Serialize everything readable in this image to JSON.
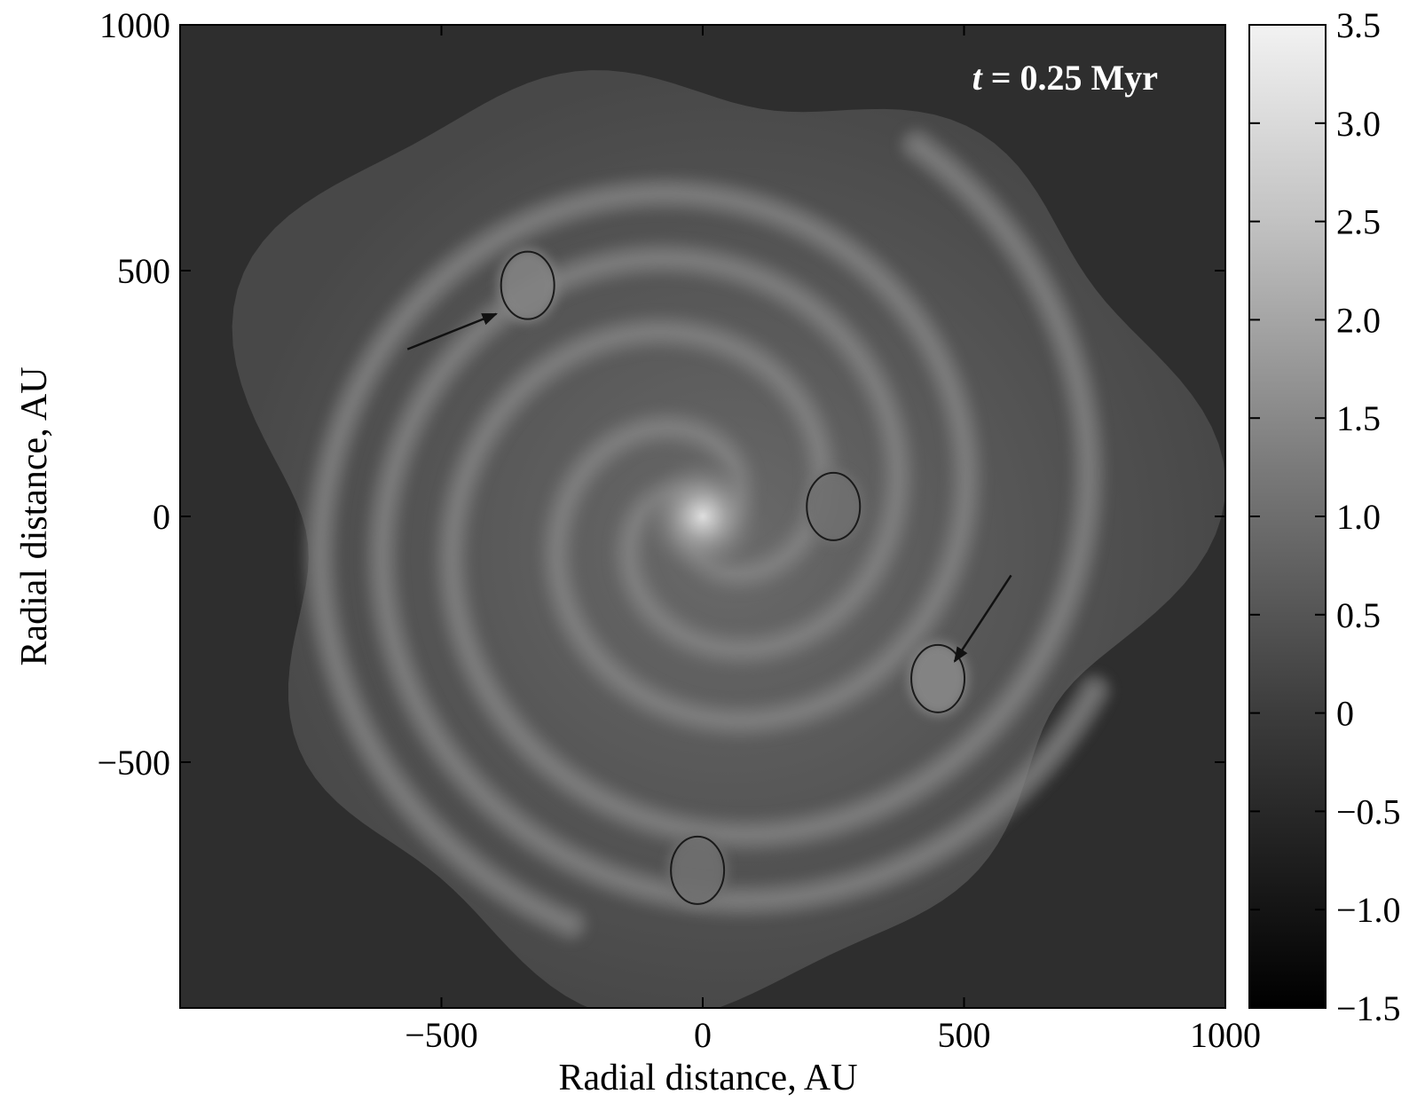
{
  "chart_data": {
    "type": "heatmap",
    "xlabel": "Radial distance, AU",
    "ylabel": "Radial distance, AU",
    "xlim": [
      -1000,
      1000
    ],
    "ylim": [
      -1000,
      1000
    ],
    "x_ticks": [
      -500,
      0,
      500,
      1000
    ],
    "x_tick_labels": [
      "−500",
      "0",
      "500",
      "1000"
    ],
    "y_ticks": [
      1000,
      500,
      0,
      -500
    ],
    "y_tick_labels": [
      "1000",
      "500",
      "0",
      "−500"
    ],
    "annotation": {
      "prefix": "t",
      "text": " = 0.25 Myr"
    },
    "colorbar": {
      "min": -1.5,
      "max": 3.5,
      "ticks": [
        3.5,
        3.0,
        2.5,
        2.0,
        1.5,
        1.0,
        0.5,
        0,
        -0.5,
        -1.0,
        -1.5
      ],
      "tick_labels": [
        "3.5",
        "3.0",
        "2.5",
        "2.0",
        "1.5",
        "1.0",
        "0.5",
        "0",
        "−0.5",
        "−1.0",
        "−1.5"
      ],
      "colormap": "gray"
    },
    "background_level": -0.5,
    "disk": {
      "center": [
        0,
        0
      ],
      "arms": [
        {
          "start_angle_deg": 0,
          "length_turns": 1.7
        },
        {
          "start_angle_deg": 120,
          "length_turns": 1.6
        },
        {
          "start_angle_deg": 240,
          "length_turns": 1.5
        }
      ]
    },
    "fragments": [
      {
        "x": -335,
        "y": 470,
        "level": 1.2
      },
      {
        "x": 450,
        "y": -330,
        "level": 1.3
      },
      {
        "x": 250,
        "y": 20,
        "level": 0.8
      },
      {
        "x": -10,
        "y": -720,
        "level": 0.8
      }
    ],
    "arrows": [
      {
        "from": [
          -565,
          340
        ],
        "to": [
          -395,
          412
        ]
      },
      {
        "from": [
          590,
          -120
        ],
        "to": [
          482,
          -295
        ]
      }
    ],
    "grid": false,
    "legend": "none"
  }
}
